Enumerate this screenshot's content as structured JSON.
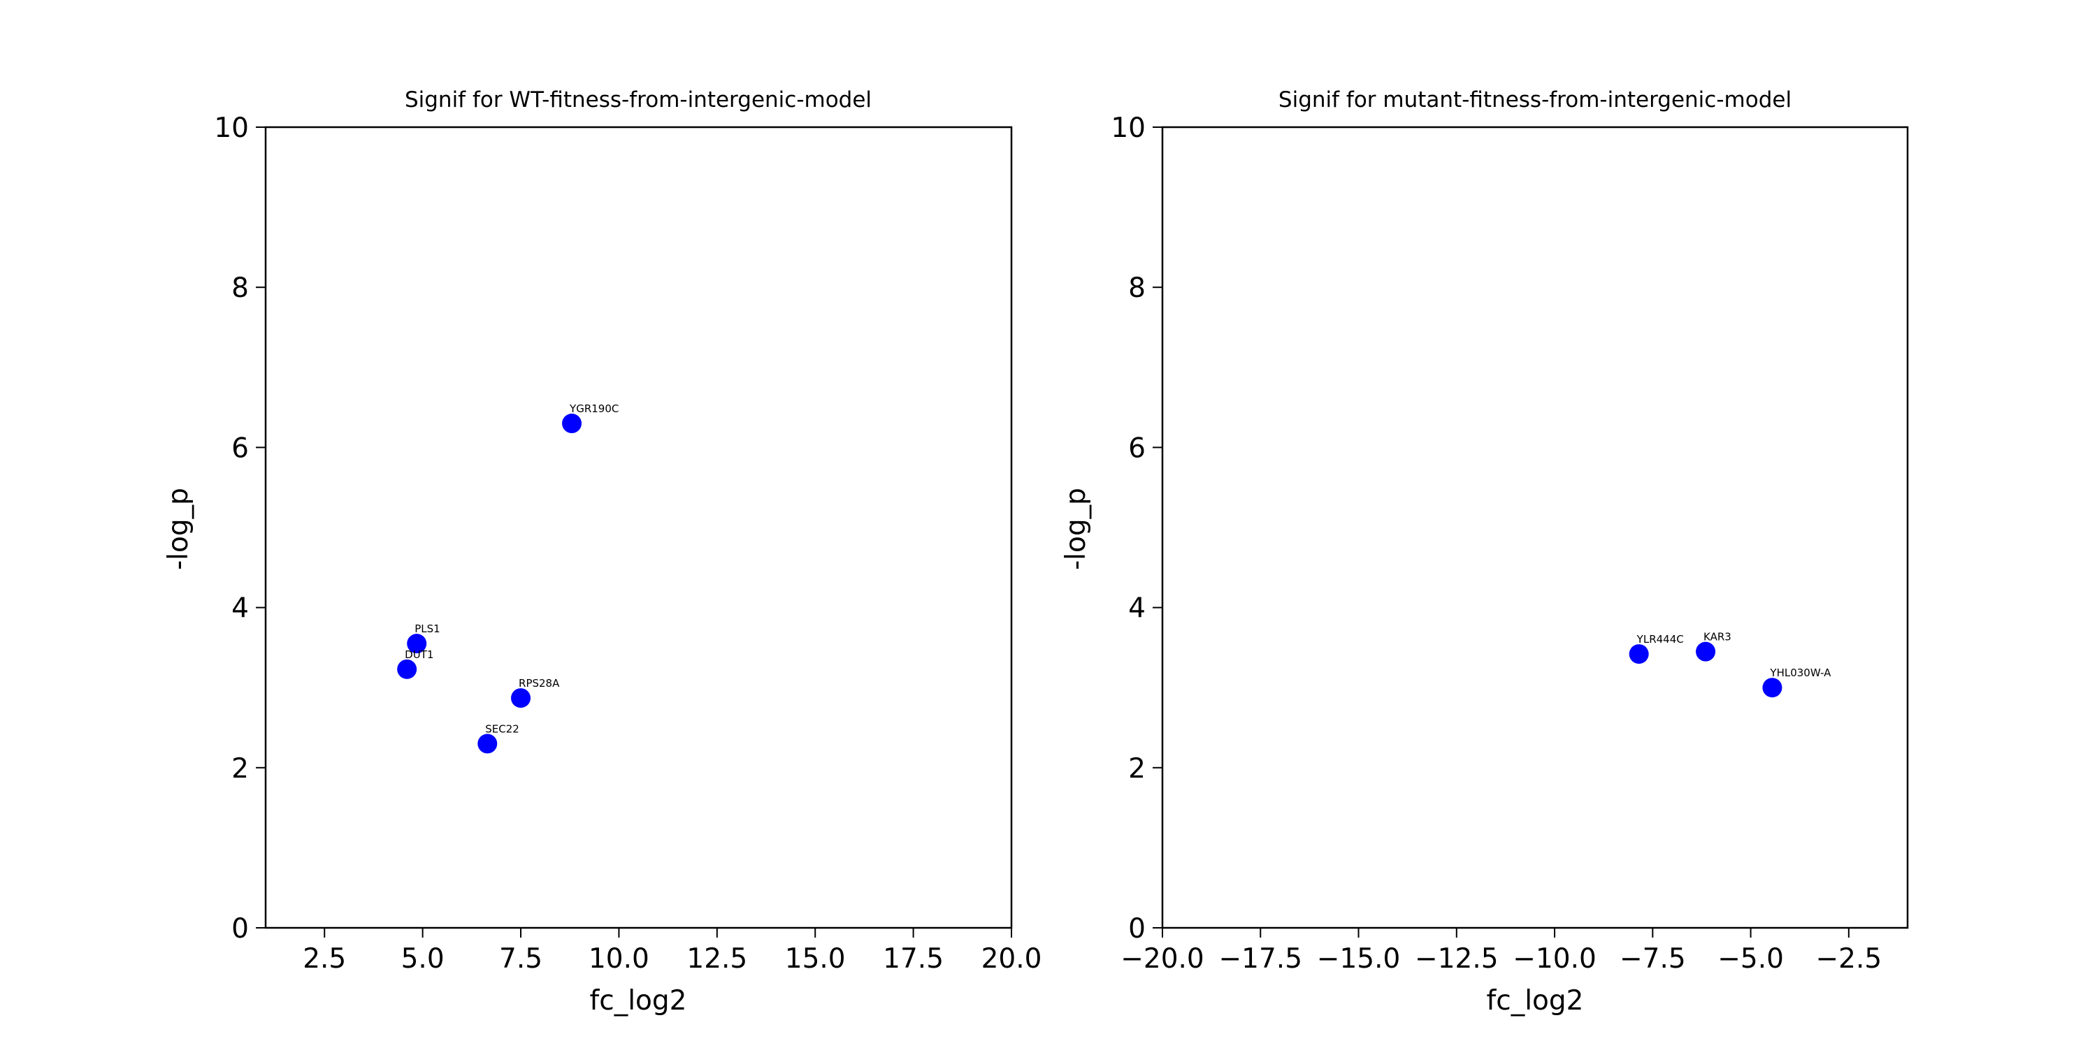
{
  "figure": {
    "background": "#ffffff",
    "marker_color": "#0000ff"
  },
  "chart_data": [
    {
      "type": "scatter",
      "title": "Signif for WT-fitness-from-intergenic-model",
      "xlabel": "fc_log2",
      "ylabel": "-log_p",
      "xlim": [
        1.0,
        20.0
      ],
      "ylim": [
        0,
        10
      ],
      "xticks": [
        2.5,
        5.0,
        7.5,
        10.0,
        12.5,
        15.0,
        17.5,
        20.0
      ],
      "xtick_labels": [
        "2.5",
        "5.0",
        "7.5",
        "10.0",
        "12.5",
        "15.0",
        "17.5",
        "20.0"
      ],
      "yticks": [
        0,
        2,
        4,
        6,
        8,
        10
      ],
      "ytick_labels": [
        "0",
        "2",
        "4",
        "6",
        "8",
        "10"
      ],
      "grid": false,
      "legend": false,
      "color": "#0000ff",
      "points": [
        {
          "label": "YGR190C",
          "x": 8.8,
          "y": 6.3
        },
        {
          "label": "PLS1",
          "x": 4.85,
          "y": 3.55
        },
        {
          "label": "DUT1",
          "x": 4.6,
          "y": 3.23
        },
        {
          "label": "RPS28A",
          "x": 7.5,
          "y": 2.87
        },
        {
          "label": "SEC22",
          "x": 6.65,
          "y": 2.3
        }
      ]
    },
    {
      "type": "scatter",
      "title": "Signif for mutant-fitness-from-intergenic-model",
      "xlabel": "fc_log2",
      "ylabel": "-log_p",
      "xlim": [
        -20.0,
        -1.0
      ],
      "ylim": [
        0,
        10
      ],
      "xticks": [
        -20.0,
        -17.5,
        -15.0,
        -12.5,
        -10.0,
        -7.5,
        -5.0,
        -2.5
      ],
      "xtick_labels": [
        "−20.0",
        "−17.5",
        "−15.0",
        "−12.5",
        "−10.0",
        "−7.5",
        "−5.0",
        "−2.5"
      ],
      "yticks": [
        0,
        2,
        4,
        6,
        8,
        10
      ],
      "ytick_labels": [
        "0",
        "2",
        "4",
        "6",
        "8",
        "10"
      ],
      "grid": false,
      "legend": false,
      "color": "#0000ff",
      "points": [
        {
          "label": "YLR444C",
          "x": -7.85,
          "y": 3.42
        },
        {
          "label": "KAR3",
          "x": -6.15,
          "y": 3.45
        },
        {
          "label": "YHL030W-A",
          "x": -4.45,
          "y": 3.0
        }
      ]
    }
  ]
}
